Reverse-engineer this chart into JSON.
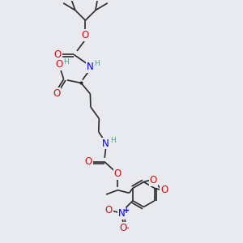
{
  "bg_color": "#e8eaf0",
  "bond_color": "#2a2a2a",
  "bond_width": 1.2,
  "atom_colors": {
    "H": "#5a9a8a",
    "N": "#0000ee",
    "O": "#cc1111",
    "plus": "#0000ee",
    "minus": "#cc1111"
  },
  "fs": 8.5,
  "fss": 6.5
}
